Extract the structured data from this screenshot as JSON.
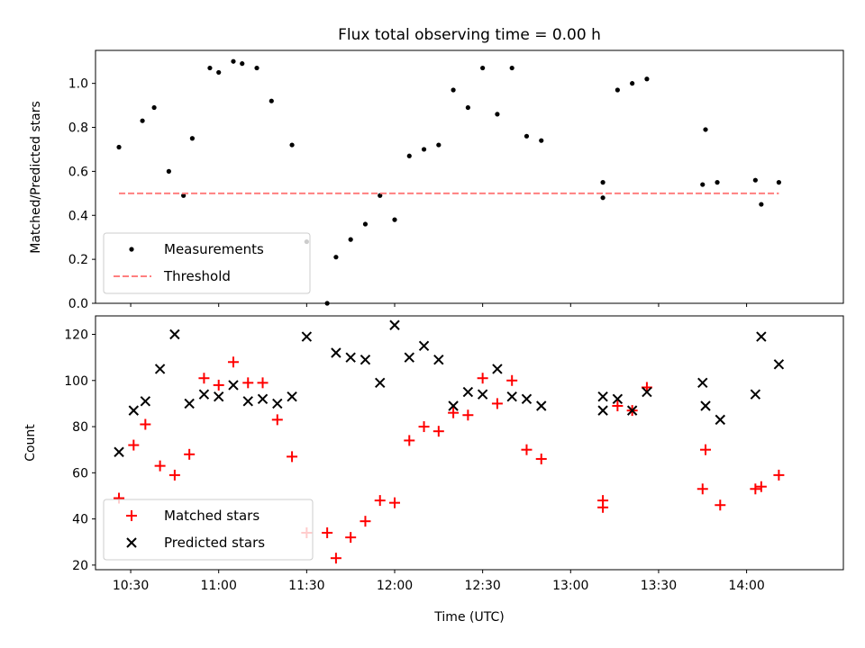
{
  "figure_title": "Flux total observing time = 0.00 h",
  "chart_data": [
    {
      "type": "scatter",
      "title": "Flux total observing time = 0.00 h",
      "xlabel": "",
      "ylabel": "Matched/Predicted stars",
      "xlim": [
        10.3,
        14.55
      ],
      "ylim": [
        0,
        1.15
      ],
      "yticks": [
        0.0,
        0.2,
        0.4,
        0.6,
        0.8,
        1.0
      ],
      "ytick_labels": [
        "0.0",
        "0.2",
        "0.4",
        "0.6",
        "0.8",
        "1.0"
      ],
      "grid": false,
      "legend": "lower-left",
      "series": [
        {
          "name": "Measurements",
          "kind": "dot",
          "color": "#000000",
          "x": [
            "10:26",
            "10:34",
            "10:38",
            "10:43",
            "10:48",
            "10:51",
            "10:57",
            "11:00",
            "11:05",
            "11:08",
            "11:13",
            "11:18",
            "11:25",
            "11:30",
            "11:40",
            "11:45",
            "11:50",
            "11:55",
            "12:00",
            "12:05",
            "12:10",
            "12:15",
            "12:20",
            "12:25",
            "12:30",
            "12:35",
            "12:40",
            "12:45",
            "12:50",
            "13:11",
            "13:11",
            "13:16",
            "13:21",
            "13:26",
            "13:45",
            "13:46",
            "13:50",
            "14:03",
            "14:05",
            "14:11"
          ],
          "y": [
            0.71,
            0.83,
            0.89,
            0.6,
            0.49,
            0.75,
            1.07,
            1.05,
            1.1,
            1.09,
            1.07,
            0.92,
            0.72,
            0.28,
            0.21,
            0.29,
            0.36,
            0.49,
            0.38,
            0.67,
            0.7,
            0.72,
            0.97,
            0.89,
            1.07,
            0.86,
            1.07,
            0.76,
            0.74,
            0.55,
            0.48,
            0.97,
            1.0,
            1.02,
            0.54,
            0.79,
            0.55,
            0.56,
            0.45,
            0.55
          ]
        },
        {
          "name": "Threshold",
          "kind": "dashed-line",
          "color": "#ff7f7f",
          "x": [
            "10:26",
            "14:11"
          ],
          "y": [
            0.5,
            0.5
          ]
        }
      ],
      "extra_points": [
        {
          "x": "11:37",
          "y": 0.0
        }
      ]
    },
    {
      "type": "scatter",
      "title": "",
      "xlabel": "Time (UTC)",
      "ylabel": "Count",
      "xlim": [
        10.3,
        14.55
      ],
      "ylim": [
        18,
        128
      ],
      "yticks": [
        20,
        40,
        60,
        80,
        100,
        120
      ],
      "ytick_labels": [
        "20",
        "40",
        "60",
        "80",
        "100",
        "120"
      ],
      "xticks": [
        "10:30",
        "11:00",
        "11:30",
        "12:00",
        "12:30",
        "13:00",
        "13:30",
        "14:00"
      ],
      "grid": false,
      "legend": "lower-left",
      "series": [
        {
          "name": "Matched stars",
          "kind": "plus",
          "color": "#ff0000",
          "x": [
            "10:26",
            "10:31",
            "10:35",
            "10:40",
            "10:45",
            "10:50",
            "10:55",
            "11:00",
            "11:05",
            "11:10",
            "11:15",
            "11:20",
            "11:25",
            "11:30",
            "11:37",
            "11:40",
            "11:45",
            "11:50",
            "11:55",
            "12:00",
            "12:05",
            "12:10",
            "12:15",
            "12:20",
            "12:25",
            "12:30",
            "12:35",
            "12:40",
            "12:45",
            "12:50",
            "13:11",
            "13:11",
            "13:16",
            "13:21",
            "13:26",
            "13:45",
            "13:46",
            "13:51",
            "14:03",
            "14:05",
            "14:11"
          ],
          "y": [
            49,
            72,
            81,
            63,
            59,
            68,
            101,
            98,
            108,
            99,
            99,
            83,
            67,
            34,
            34,
            23,
            32,
            39,
            48,
            47,
            74,
            80,
            78,
            86,
            85,
            101,
            90,
            100,
            70,
            66,
            48,
            45,
            89,
            87,
            97,
            53,
            70,
            46,
            53,
            54,
            59
          ]
        },
        {
          "name": "Predicted stars",
          "kind": "x",
          "color": "#000000",
          "x": [
            "10:26",
            "10:31",
            "10:35",
            "10:40",
            "10:45",
            "10:50",
            "10:55",
            "11:00",
            "11:05",
            "11:10",
            "11:15",
            "11:20",
            "11:25",
            "11:30",
            "11:40",
            "11:45",
            "11:50",
            "11:55",
            "12:00",
            "12:05",
            "12:10",
            "12:15",
            "12:20",
            "12:25",
            "12:30",
            "12:35",
            "12:40",
            "12:45",
            "12:50",
            "13:11",
            "13:11",
            "13:16",
            "13:21",
            "13:26",
            "13:45",
            "13:46",
            "13:51",
            "14:03",
            "14:05",
            "14:11"
          ],
          "y": [
            69,
            87,
            91,
            105,
            120,
            90,
            94,
            93,
            98,
            91,
            92,
            90,
            93,
            119,
            112,
            110,
            109,
            99,
            124,
            110,
            115,
            109,
            89,
            95,
            94,
            105,
            93,
            92,
            89,
            93,
            87,
            92,
            87,
            95,
            99,
            89,
            83,
            94,
            119,
            107
          ]
        }
      ]
    }
  ]
}
